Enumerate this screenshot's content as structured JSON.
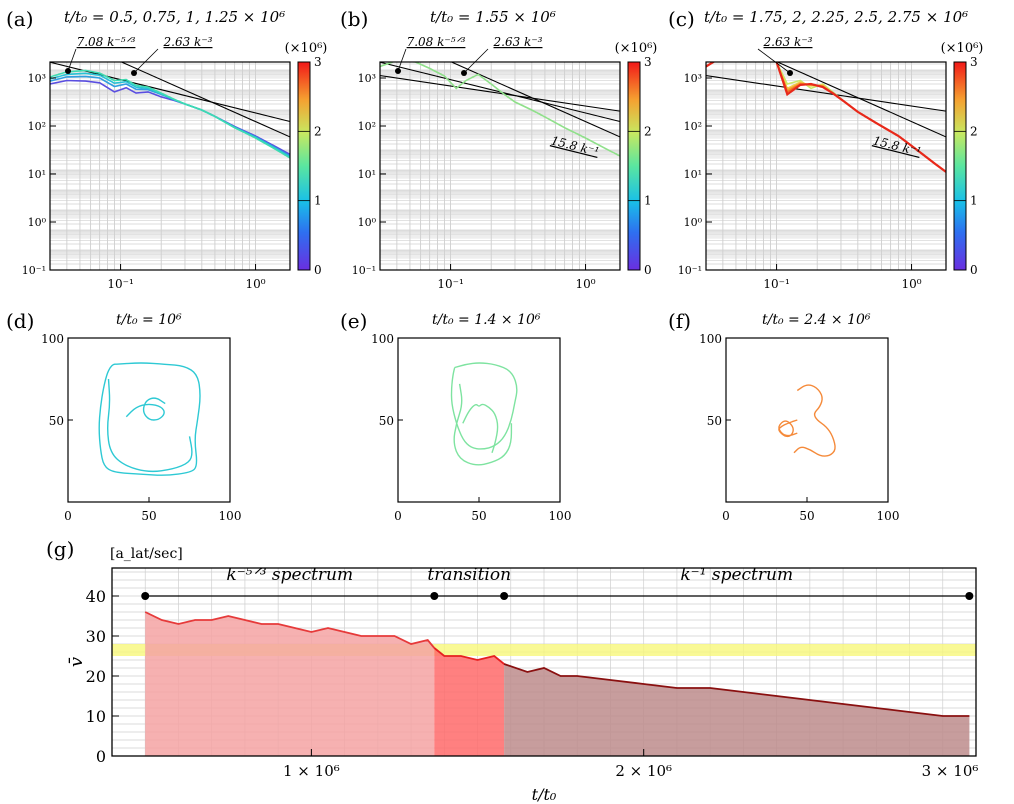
{
  "panels": {
    "a": {
      "letter": "(a)",
      "title": "t/t₀ = 0.5, 0.75, 1, 1.25 × 10⁶"
    },
    "b": {
      "letter": "(b)",
      "title": "t/t₀ = 1.55 × 10⁶"
    },
    "c": {
      "letter": "(c)",
      "title": "t/t₀ = 1.75, 2, 2.25, 2.5, 2.75 × 10⁶"
    },
    "d": {
      "letter": "(d)",
      "title": "t/t₀ = 10⁶"
    },
    "e": {
      "letter": "(e)",
      "title": "t/t₀ = 1.4 × 10⁶"
    },
    "f": {
      "letter": "(f)",
      "title": "t/t₀ = 2.4 × 10⁶"
    },
    "g": {
      "letter": "(g)"
    }
  },
  "colorbar": {
    "unit": "(×10⁶)",
    "ticks": [
      "0",
      "1",
      "2",
      "3"
    ]
  },
  "chart_data": [
    {
      "id": "a",
      "type": "line",
      "scale": "log-log",
      "xlim": [
        0.03,
        1.8
      ],
      "ylim_exp": [
        -7,
        3.4
      ],
      "y_tick_labels": [
        "10³",
        "10²",
        "10¹",
        "10⁰",
        "10⁻¹"
      ],
      "x_tick_labels": [
        "10⁻¹",
        "10⁰"
      ],
      "fit_labels": [
        "7.08 k⁻⁵ᐟ³",
        "2.63 k⁻³"
      ],
      "fits": [
        {
          "coef": 7.08,
          "slope": -1.6667
        },
        {
          "coef": 2.63,
          "slope": -3
        }
      ],
      "series": [
        {
          "t": 0.5,
          "color": "#5a4ee0",
          "x": [
            0.03,
            0.04,
            0.055,
            0.07,
            0.09,
            0.11,
            0.13,
            0.16,
            0.2,
            0.25,
            0.3,
            0.4,
            0.5,
            0.7,
            1.0,
            1.4,
            1.8
          ],
          "y": [
            200,
            300,
            280,
            230,
            80,
            130,
            70,
            80,
            45,
            30,
            20,
            10,
            4.8,
            1.5,
            0.5,
            0.15,
            0.06
          ]
        },
        {
          "t": 0.75,
          "color": "#2f9fe0",
          "x": [
            0.03,
            0.04,
            0.055,
            0.07,
            0.09,
            0.11,
            0.13,
            0.16,
            0.2,
            0.25,
            0.3,
            0.4,
            0.5,
            0.7,
            1.0,
            1.4,
            1.8
          ],
          "y": [
            280,
            450,
            480,
            400,
            150,
            200,
            110,
            105,
            60,
            32,
            20,
            10,
            4.8,
            1.4,
            0.45,
            0.13,
            0.05
          ]
        },
        {
          "t": 1.0,
          "color": "#27c3d6",
          "x": [
            0.03,
            0.04,
            0.055,
            0.07,
            0.09,
            0.11,
            0.13,
            0.16,
            0.2,
            0.25,
            0.3,
            0.4,
            0.5,
            0.7,
            1.0,
            1.4,
            1.8
          ],
          "y": [
            360,
            600,
            680,
            550,
            220,
            260,
            140,
            120,
            65,
            33,
            20,
            10,
            4.8,
            1.3,
            0.42,
            0.12,
            0.045
          ]
        },
        {
          "t": 1.25,
          "color": "#3ddcb0",
          "x": [
            0.03,
            0.04,
            0.055,
            0.07,
            0.09,
            0.11,
            0.13,
            0.16,
            0.2,
            0.25,
            0.3,
            0.4,
            0.5,
            0.7,
            1.0,
            1.4,
            1.8
          ],
          "y": [
            450,
            800,
            950,
            700,
            300,
            330,
            170,
            140,
            70,
            34,
            20,
            10,
            4.8,
            1.3,
            0.4,
            0.11,
            0.04
          ]
        }
      ]
    },
    {
      "id": "b",
      "type": "line",
      "scale": "log-log",
      "xlim": [
        0.03,
        1.8
      ],
      "ylim_exp": [
        -7,
        3.4
      ],
      "y_tick_labels": [
        "10³",
        "10²",
        "10¹",
        "10⁰",
        "10⁻¹"
      ],
      "x_tick_labels": [
        "10⁻¹",
        "10⁰"
      ],
      "fit_labels": [
        "7.08 k⁻⁵ᐟ³",
        "2.63 k⁻³",
        "15.8 k⁻¹"
      ],
      "fits": [
        {
          "coef": 7.08,
          "slope": -1.6667
        },
        {
          "coef": 2.63,
          "slope": -3
        },
        {
          "coef": 15.8,
          "slope": -1
        }
      ],
      "series": [
        {
          "t": 1.55,
          "color": "#8fe08a",
          "x": [
            0.03,
            0.04,
            0.055,
            0.07,
            0.09,
            0.11,
            0.13,
            0.16,
            0.2,
            0.25,
            0.3,
            0.4,
            0.5,
            0.7,
            1.0,
            1.4,
            1.8
          ],
          "y": [
            1500,
            3000,
            2500,
            1200,
            500,
            120,
            300,
            600,
            200,
            60,
            25,
            10,
            4.5,
            1.3,
            0.4,
            0.12,
            0.05
          ]
        }
      ]
    },
    {
      "id": "c",
      "type": "line",
      "scale": "log-log",
      "xlim": [
        0.03,
        1.8
      ],
      "ylim_exp": [
        -7,
        3.4
      ],
      "y_tick_labels": [
        "10³",
        "10²",
        "10¹",
        "10⁰",
        "10⁻¹"
      ],
      "x_tick_labels": [
        "10⁻¹",
        "10⁰"
      ],
      "fit_labels": [
        "2.63 k⁻³",
        "15.8 k⁻¹"
      ],
      "fits": [
        {
          "coef": 2.63,
          "slope": -3
        },
        {
          "coef": 15.8,
          "slope": -1
        }
      ],
      "series": [
        {
          "t": 1.75,
          "color": "#c8e86a",
          "x": [
            0.03,
            0.045,
            0.06,
            0.08,
            0.1,
            0.12,
            0.15,
            0.18,
            0.22,
            0.26,
            0.32,
            0.4,
            0.55,
            0.8,
            1.1,
            1.5,
            1.8
          ],
          "y": [
            1500,
            8000,
            12000,
            6000,
            2500,
            200,
            300,
            120,
            200,
            80,
            25,
            8,
            2.2,
            0.5,
            0.1,
            0.02,
            0.008
          ]
        },
        {
          "t": 2.0,
          "color": "#f0d050",
          "x": [
            0.03,
            0.045,
            0.06,
            0.08,
            0.1,
            0.12,
            0.15,
            0.18,
            0.22,
            0.26,
            0.32,
            0.4,
            0.55,
            0.8,
            1.1,
            1.5,
            1.8
          ],
          "y": [
            1500,
            8000,
            12000,
            6000,
            2500,
            120,
            250,
            160,
            180,
            70,
            25,
            8,
            2.2,
            0.5,
            0.1,
            0.02,
            0.008
          ]
        },
        {
          "t": 2.25,
          "color": "#f5a030",
          "x": [
            0.03,
            0.045,
            0.06,
            0.08,
            0.1,
            0.12,
            0.15,
            0.18,
            0.22,
            0.26,
            0.32,
            0.4,
            0.55,
            0.8,
            1.1,
            1.5,
            1.8
          ],
          "y": [
            1500,
            8000,
            12000,
            6000,
            2500,
            100,
            220,
            180,
            160,
            70,
            25,
            8,
            2.2,
            0.5,
            0.1,
            0.02,
            0.008
          ]
        },
        {
          "t": 2.5,
          "color": "#f06a20",
          "x": [
            0.03,
            0.045,
            0.06,
            0.08,
            0.1,
            0.12,
            0.15,
            0.18,
            0.22,
            0.26,
            0.32,
            0.4,
            0.55,
            0.8,
            1.1,
            1.5,
            1.8
          ],
          "y": [
            1500,
            8000,
            12000,
            6000,
            2500,
            80,
            200,
            190,
            150,
            70,
            25,
            8,
            2.2,
            0.5,
            0.1,
            0.02,
            0.008
          ]
        },
        {
          "t": 2.75,
          "color": "#e8281a",
          "x": [
            0.03,
            0.045,
            0.06,
            0.08,
            0.1,
            0.12,
            0.15,
            0.18,
            0.22,
            0.26,
            0.32,
            0.4,
            0.55,
            0.8,
            1.1,
            1.5,
            1.8
          ],
          "y": [
            1500,
            8000,
            12000,
            6000,
            2500,
            60,
            180,
            200,
            140,
            70,
            25,
            8,
            2.2,
            0.5,
            0.1,
            0.02,
            0.008
          ]
        }
      ]
    },
    {
      "id": "d",
      "type": "scatter",
      "xlim": [
        0,
        100
      ],
      "ylim": [
        0,
        100
      ],
      "x_tick_labels": [
        "0",
        "50",
        "100"
      ],
      "y_tick_labels": [
        "50",
        "100"
      ],
      "color": "#2ec9d4",
      "curves": [
        {
          "x": [
            30,
            45,
            60,
            72,
            80,
            82,
            80,
            78,
            80,
            76,
            60,
            45,
            28,
            22,
            20,
            19,
            20,
            22,
            24,
            26,
            28,
            30
          ],
          "y": [
            84,
            85,
            84,
            83,
            78,
            65,
            50,
            38,
            22,
            18,
            16,
            17,
            18,
            22,
            32,
            45,
            58,
            70,
            78,
            82,
            84,
            84
          ]
        },
        {
          "x": [
            25,
            26,
            24,
            26,
            35,
            50,
            65,
            75,
            77,
            75
          ],
          "y": [
            75,
            60,
            45,
            30,
            22,
            18,
            20,
            24,
            30,
            40
          ]
        },
        {
          "x": [
            36,
            42,
            50,
            58,
            60,
            56,
            50,
            46,
            48,
            54,
            60
          ],
          "y": [
            52,
            58,
            60,
            58,
            54,
            50,
            50,
            55,
            62,
            64,
            60
          ]
        }
      ]
    },
    {
      "id": "e",
      "type": "scatter",
      "xlim": [
        0,
        100
      ],
      "ylim": [
        0,
        100
      ],
      "x_tick_labels": [
        "0",
        "50",
        "100"
      ],
      "y_tick_labels": [
        "50",
        "100"
      ],
      "color": "#7ee3a0",
      "curves": [
        {
          "x": [
            35,
            42,
            50,
            60,
            70,
            74,
            72,
            70,
            66,
            60,
            52,
            45,
            40,
            36,
            33,
            33,
            34,
            35
          ],
          "y": [
            82,
            84,
            85,
            84,
            80,
            70,
            60,
            50,
            40,
            34,
            32,
            33,
            38,
            48,
            60,
            70,
            78,
            82
          ]
        },
        {
          "x": [
            38,
            40,
            36,
            34,
            38,
            48,
            58,
            66,
            70,
            70
          ],
          "y": [
            72,
            60,
            48,
            36,
            26,
            22,
            24,
            28,
            36,
            48
          ]
        },
        {
          "x": [
            40,
            44,
            48,
            50,
            52,
            56,
            60,
            62,
            60,
            58
          ],
          "y": [
            48,
            56,
            60,
            58,
            60,
            58,
            54,
            46,
            36,
            30
          ]
        }
      ]
    },
    {
      "id": "f",
      "type": "scatter",
      "xlim": [
        0,
        100
      ],
      "ylim": [
        0,
        100
      ],
      "x_tick_labels": [
        "0",
        "50",
        "100"
      ],
      "y_tick_labels": [
        "50",
        "100"
      ],
      "color": "#f58a3a",
      "curves": [
        {
          "x": [
            44,
            50,
            56,
            60,
            58,
            54,
            56,
            62,
            66,
            68,
            64,
            58,
            52,
            46,
            42
          ],
          "y": [
            68,
            72,
            70,
            64,
            58,
            54,
            50,
            46,
            40,
            32,
            28,
            28,
            32,
            34,
            30
          ]
        },
        {
          "x": [
            44,
            38,
            34,
            32,
            36,
            40,
            42,
            40,
            36,
            32,
            34,
            38,
            44
          ],
          "y": [
            50,
            48,
            46,
            44,
            40,
            40,
            44,
            48,
            50,
            46,
            42,
            40,
            42
          ]
        }
      ]
    },
    {
      "id": "g",
      "type": "area",
      "xlabel": "t/t₀",
      "ylabel": "v̄",
      "unit": "[a_lat/sec]",
      "xlim": [
        0.4,
        3.0
      ],
      "ylim": [
        0,
        47
      ],
      "x_tick_labels": [
        "1 × 10⁶",
        "2 × 10⁶",
        "3 × 10⁶"
      ],
      "x_tick_values": [
        1.0,
        2.0,
        3.0
      ],
      "y_tick_values": [
        0,
        10,
        20,
        30,
        40
      ],
      "band": [
        25,
        28
      ],
      "regions": [
        {
          "label": "k⁻⁵ᐟ³  spectrum",
          "from": 0.5,
          "to": 1.37,
          "color": "#f4a3a3"
        },
        {
          "label": "transition",
          "from": 1.37,
          "to": 1.58,
          "color": "#ff6a6a"
        },
        {
          "label": "k⁻¹  spectrum",
          "from": 1.58,
          "to": 2.98,
          "color": "#bd8c8c"
        }
      ],
      "markers": {
        "y": 40,
        "x": [
          0.5,
          1.37,
          1.58,
          2.98
        ]
      },
      "series": [
        {
          "name": "v",
          "x": [
            0.5,
            0.55,
            0.6,
            0.65,
            0.7,
            0.75,
            0.8,
            0.85,
            0.9,
            0.95,
            1.0,
            1.05,
            1.1,
            1.15,
            1.2,
            1.25,
            1.3,
            1.35,
            1.37,
            1.4,
            1.45,
            1.5,
            1.55,
            1.58,
            1.65,
            1.7,
            1.75,
            1.8,
            1.9,
            2.0,
            2.1,
            2.2,
            2.3,
            2.4,
            2.5,
            2.6,
            2.7,
            2.8,
            2.9,
            2.98
          ],
          "y": [
            36,
            34,
            33,
            34,
            34,
            35,
            34,
            33,
            33,
            32,
            31,
            32,
            31,
            30,
            30,
            30,
            28,
            29,
            27,
            25,
            25,
            24,
            25,
            23,
            21,
            22,
            20,
            20,
            19,
            18,
            17,
            17,
            16,
            15,
            14,
            13,
            12,
            11,
            10,
            10
          ]
        }
      ]
    }
  ]
}
